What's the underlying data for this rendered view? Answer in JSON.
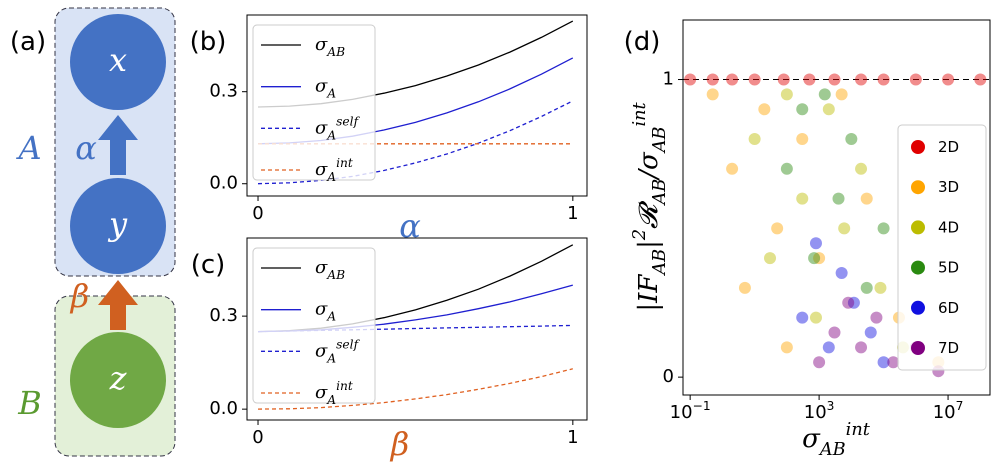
{
  "diagram": {
    "label": "(a)",
    "nodes": [
      {
        "label": "x"
      },
      {
        "label": "y"
      },
      {
        "label": "z"
      }
    ],
    "groups": [
      {
        "label": "A"
      },
      {
        "label": "B"
      }
    ],
    "edges": [
      {
        "label": "α"
      },
      {
        "label": "β"
      }
    ]
  },
  "chart_data": [
    {
      "type": "line",
      "label": "(b)",
      "x_label": "α",
      "x_label_color": "#4472c4",
      "x": [
        0,
        0.1,
        0.2,
        0.3,
        0.4,
        0.5,
        0.6,
        0.7,
        0.8,
        0.9,
        1
      ],
      "series": [
        {
          "name": "σ_{AB}",
          "color": "#000000",
          "dash": false,
          "values": [
            0.25,
            0.253,
            0.261,
            0.275,
            0.295,
            0.32,
            0.351,
            0.387,
            0.429,
            0.477,
            0.53
          ]
        },
        {
          "name": "σ_{A}",
          "color": "#1f1fd0",
          "dash": false,
          "values": [
            0.13,
            0.133,
            0.141,
            0.155,
            0.175,
            0.2,
            0.231,
            0.267,
            0.309,
            0.357,
            0.41
          ]
        },
        {
          "name": "σ_{A}^{self}",
          "color": "#1f1fd0",
          "dash": true,
          "values": [
            0,
            0.003,
            0.011,
            0.024,
            0.043,
            0.068,
            0.097,
            0.132,
            0.173,
            0.219,
            0.27
          ]
        },
        {
          "name": "σ_{A}^{int}",
          "color": "#e06020",
          "dash": true,
          "values": [
            0.13,
            0.13,
            0.13,
            0.13,
            0.13,
            0.13,
            0.13,
            0.13,
            0.13,
            0.13,
            0.13
          ]
        }
      ],
      "xlim": [
        -0.035,
        1.045
      ],
      "xticks": [
        0,
        1
      ],
      "ylim": [
        -0.04,
        0.55
      ],
      "yticks": [
        {
          "value": 0,
          "label": "0.0"
        },
        0.3
      ],
      "legend": "upper left"
    },
    {
      "type": "line",
      "label": "(c)",
      "x_label": "β",
      "x_label_color": "#d06020",
      "x": [
        0,
        0.1,
        0.2,
        0.3,
        0.4,
        0.5,
        0.6,
        0.7,
        0.8,
        0.9,
        1
      ],
      "series": [
        {
          "name": "σ_{AB}",
          "color": "#000000",
          "dash": false,
          "values": [
            0.25,
            0.253,
            0.261,
            0.275,
            0.295,
            0.32,
            0.351,
            0.387,
            0.429,
            0.477,
            0.53
          ]
        },
        {
          "name": "σ_{A}",
          "color": "#1f1fd0",
          "dash": false,
          "values": [
            0.25,
            0.252,
            0.256,
            0.264,
            0.274,
            0.288,
            0.304,
            0.324,
            0.346,
            0.372,
            0.4
          ]
        },
        {
          "name": "σ_{A}^{self}",
          "color": "#1f1fd0",
          "dash": true,
          "values": [
            0.25,
            0.252,
            0.254,
            0.256,
            0.258,
            0.26,
            0.262,
            0.264,
            0.266,
            0.268,
            0.27
          ]
        },
        {
          "name": "σ_{A}^{int}",
          "color": "#e06020",
          "dash": true,
          "values": [
            0,
            0.001,
            0.005,
            0.012,
            0.021,
            0.033,
            0.047,
            0.064,
            0.083,
            0.105,
            0.13
          ]
        }
      ],
      "xlim": [
        -0.035,
        1.045
      ],
      "xticks": [
        0,
        1
      ],
      "ylim": [
        -0.035,
        0.552
      ],
      "yticks": [
        {
          "value": 0,
          "label": "0.0"
        },
        0.3
      ],
      "legend": "upper left"
    },
    {
      "type": "scatter",
      "label": "(d)",
      "x_label": "σ_{AB}^{int}",
      "y_label": "|IF_{AB}|^{2}𝓡_{AB}/σ_{AB}^{int}",
      "log_x": true,
      "hline": 1,
      "xlim": [
        0.06,
        200000000
      ],
      "xticks": [
        {
          "value": 0.1,
          "label": "10^{−1}"
        },
        {
          "value": 1000,
          "label": "10^{3}"
        },
        {
          "value": 10000000,
          "label": "10^{7}"
        }
      ],
      "ylim": [
        -0.06,
        1.2
      ],
      "yticks": [
        0,
        1
      ],
      "legend": "right",
      "series": [
        {
          "name": "2D",
          "color": "#e00000",
          "x": [
            0.1,
            0.5,
            2,
            10,
            80,
            500,
            3000,
            20000,
            100000,
            1000000,
            10000000,
            100000000
          ],
          "y": [
            1,
            1,
            1,
            1,
            1,
            1,
            1,
            1,
            1,
            1,
            1,
            1
          ]
        },
        {
          "name": "3D",
          "color": "#ffa500",
          "x": [
            0.5,
            2,
            5,
            20,
            50,
            100,
            300,
            1000,
            5000,
            30000,
            300000,
            5000000
          ],
          "y": [
            0.95,
            0.7,
            0.3,
            0.9,
            0.5,
            0.1,
            0.8,
            0.4,
            0.95,
            0.6,
            0.2,
            0.05
          ]
        },
        {
          "name": "4D",
          "color": "#bcbc00",
          "x": [
            10,
            30,
            100,
            300,
            800,
            2000,
            6000,
            20000,
            80000,
            400000
          ],
          "y": [
            0.8,
            0.4,
            0.95,
            0.6,
            0.2,
            0.9,
            0.5,
            0.7,
            0.3,
            0.1
          ]
        },
        {
          "name": "5D",
          "color": "#2a8a10",
          "x": [
            100,
            300,
            700,
            1500,
            4000,
            10000,
            30000,
            100000
          ],
          "y": [
            0.7,
            0.9,
            0.4,
            0.95,
            0.6,
            0.8,
            0.3,
            0.5
          ]
        },
        {
          "name": "6D",
          "color": "#1010e0",
          "x": [
            300,
            800,
            2000,
            5000,
            12000,
            40000,
            100000
          ],
          "y": [
            0.2,
            0.45,
            0.1,
            0.35,
            0.25,
            0.15,
            0.05
          ]
        },
        {
          "name": "7D",
          "color": "#800080",
          "x": [
            1000,
            3000,
            8000,
            20000,
            60000,
            200000,
            1000000,
            5000000
          ],
          "y": [
            0.05,
            0.15,
            0.25,
            0.1,
            0.2,
            0.05,
            0.1,
            0.02
          ]
        }
      ]
    }
  ]
}
